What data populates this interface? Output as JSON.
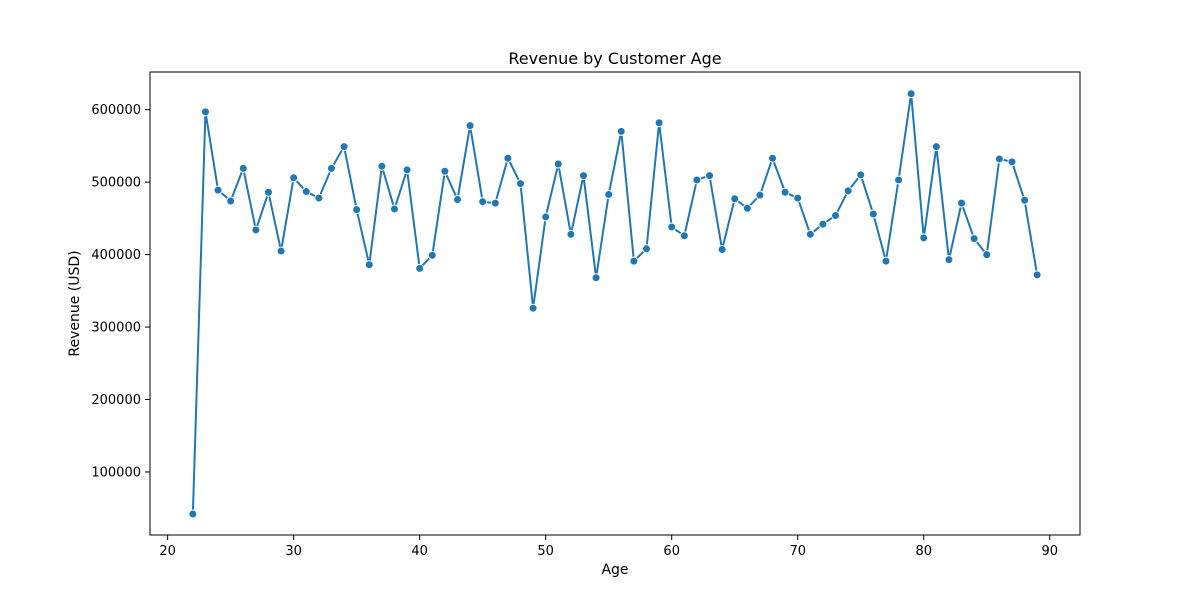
{
  "chart_data": {
    "type": "line",
    "title": "Revenue by Customer Age",
    "xlabel": "Age",
    "ylabel": "Revenue (USD)",
    "xlim": [
      18.6,
      92.4
    ],
    "ylim": [
      13000,
      652000
    ],
    "x_ticks": [
      20,
      30,
      40,
      50,
      60,
      70,
      80,
      90
    ],
    "y_ticks": [
      100000,
      200000,
      300000,
      400000,
      500000,
      600000
    ],
    "grid": false,
    "markers": true,
    "series": [
      {
        "color": "#1f77b4",
        "x": [
          22,
          23,
          24,
          25,
          26,
          27,
          28,
          29,
          30,
          31,
          32,
          33,
          34,
          35,
          36,
          37,
          38,
          39,
          40,
          41,
          42,
          43,
          44,
          45,
          46,
          47,
          48,
          49,
          50,
          51,
          52,
          53,
          54,
          55,
          56,
          57,
          58,
          59,
          60,
          61,
          62,
          63,
          64,
          65,
          66,
          67,
          68,
          69,
          70,
          71,
          72,
          73,
          74,
          75,
          76,
          77,
          78,
          79,
          80,
          81,
          82,
          83,
          84,
          85,
          86,
          87,
          88,
          89
        ],
        "y": [
          42000,
          597000,
          489000,
          474000,
          519000,
          434000,
          486000,
          405000,
          506000,
          487000,
          478000,
          519000,
          549000,
          462000,
          386000,
          522000,
          463000,
          517000,
          381000,
          399000,
          515000,
          476000,
          578000,
          473000,
          471000,
          533000,
          498000,
          326000,
          452000,
          525000,
          428000,
          509000,
          368000,
          483000,
          570000,
          391000,
          408000,
          582000,
          438000,
          426000,
          503000,
          509000,
          407000,
          477000,
          464000,
          482000,
          533000,
          486000,
          478000,
          428000,
          442000,
          454000,
          488000,
          510000,
          456000,
          391000,
          503000,
          622000,
          423000,
          549000,
          393000,
          471000,
          422000,
          400000,
          532000,
          528000,
          475000,
          372000
        ]
      }
    ]
  }
}
